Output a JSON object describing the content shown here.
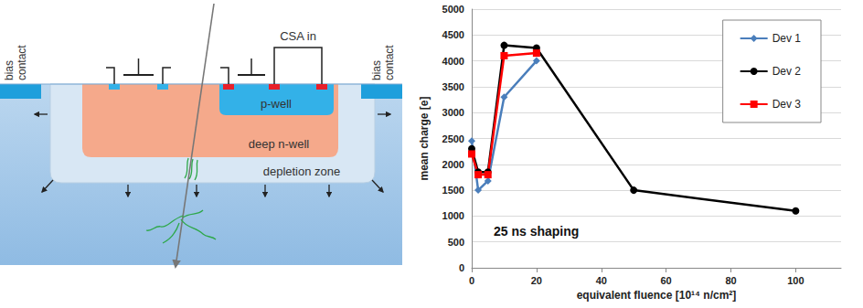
{
  "diagram": {
    "bias_contacts": [
      "bias contact",
      "bias contact"
    ],
    "csa_label": "CSA in",
    "regions": {
      "p_well": "p-well",
      "deep_n_well": "deep n-well",
      "depletion_zone": "depletion zone"
    }
  },
  "chart_data": {
    "type": "line",
    "x_label": "equivalent fluence [10¹⁴ n/cm²]",
    "y_label": "mean charge [e]",
    "annotations": [
      "25 ns shaping"
    ],
    "xlim": [
      0,
      114
    ],
    "xticks": [
      0,
      20,
      40,
      60,
      80,
      100
    ],
    "ylim": [
      0,
      5000
    ],
    "yticks": [
      0,
      500,
      1000,
      1500,
      2000,
      2500,
      3000,
      3500,
      4000,
      4500,
      5000
    ],
    "grid": true,
    "legend": "upper right",
    "series": [
      {
        "name": "Dev 1",
        "color": "#4a7ebb",
        "marker": "diamond",
        "x": [
          0,
          2,
          5,
          10,
          20
        ],
        "values": [
          2450,
          1500,
          1680,
          3300,
          4000
        ]
      },
      {
        "name": "Dev 2",
        "color": "#000000",
        "marker": "circle",
        "x": [
          0,
          2,
          5,
          10,
          20,
          50,
          100
        ],
        "values": [
          2300,
          1850,
          1850,
          4300,
          4250,
          1500,
          1100
        ]
      },
      {
        "name": "Dev 3",
        "color": "#ff0000",
        "marker": "square",
        "x": [
          0,
          2,
          5,
          10,
          20
        ],
        "values": [
          2200,
          1800,
          1800,
          4100,
          4150
        ]
      }
    ]
  }
}
